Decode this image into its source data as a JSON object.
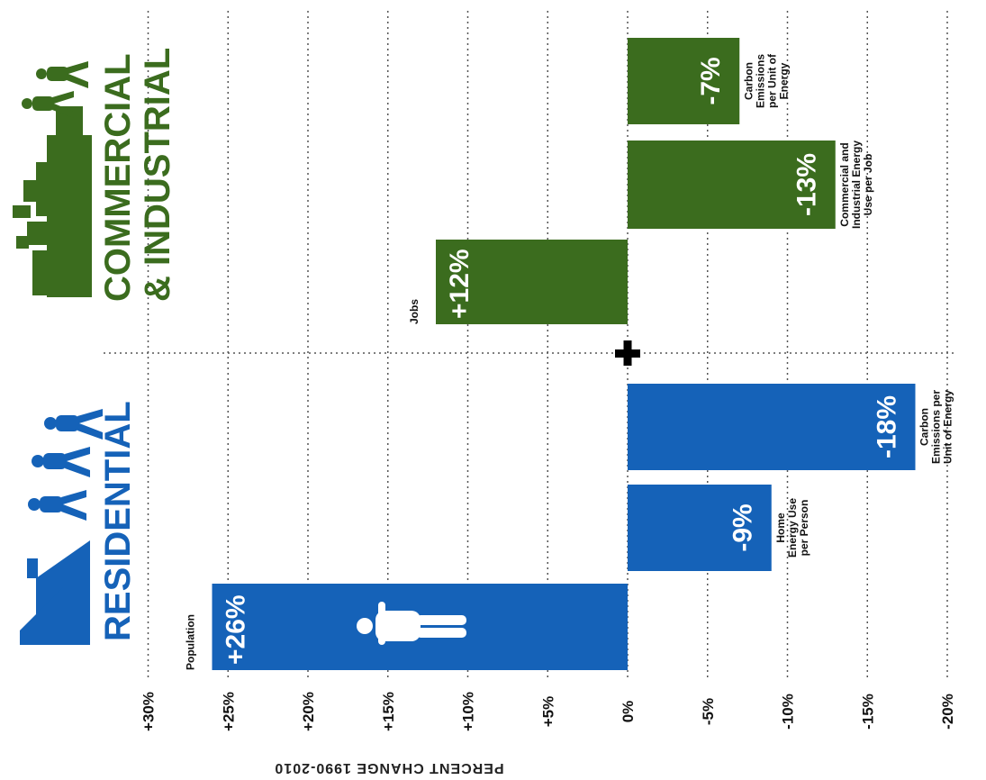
{
  "colors": {
    "residential": "#1562b8",
    "commercial": "#3b6c1e",
    "grid": "#555555",
    "text": "#111111"
  },
  "icons": {
    "residential": [
      "house-silhouette-icon",
      "walking-people-icon"
    ],
    "commercial": [
      "city-skyline-icon",
      "walking-people-icon"
    ],
    "population": "person-icon",
    "plus": "plus-icon"
  },
  "chart_data": {
    "type": "bar",
    "orientation": "horizontal",
    "axis_title": "PERCENT CHANGE 1990-2010",
    "ticks": [
      "+30%",
      "+25%",
      "+20%",
      "+15%",
      "+10%",
      "+5%",
      "0%",
      "-5%",
      "-10%",
      "-15%",
      "-20%"
    ],
    "tick_values": [
      30,
      25,
      20,
      15,
      10,
      5,
      0,
      -5,
      -10,
      -15,
      -20
    ],
    "xlim": [
      30,
      -20
    ],
    "grid": true,
    "groups": [
      {
        "key": "commercial",
        "title_line1": "COMMERCIAL",
        "title_line2": "& INDUSTRIAL",
        "bars": [
          {
            "label": "Carbon Emissions per Unit of Energy",
            "label_lines": [
              "Carbon",
              "Emissions",
              "per Unit of",
              "Energy"
            ],
            "value": -7,
            "value_label": "-7%"
          },
          {
            "label": "Commercial and Industrial Energy Use per Job",
            "label_lines": [
              "Commercial and",
              "Industrial Energy",
              "Use per Job"
            ],
            "value": -13,
            "value_label": "-13%"
          },
          {
            "label": "Jobs",
            "label_lines": [
              "Jobs"
            ],
            "value": 12,
            "value_label": "+12%"
          }
        ]
      },
      {
        "key": "residential",
        "title_line1": "RESIDENTIAL",
        "bars": [
          {
            "label": "Carbon Emissions per Unit of Energy",
            "label_lines": [
              "Carbon",
              "Emissions per",
              "Unit of Energy"
            ],
            "value": -18,
            "value_label": "-18%"
          },
          {
            "label": "Home Energy Use per Person",
            "label_lines": [
              "Home",
              "Energy Use",
              "per Person"
            ],
            "value": -9,
            "value_label": "-9%"
          },
          {
            "label": "Population",
            "label_lines": [
              "Population"
            ],
            "value": 26,
            "value_label": "+26%"
          }
        ]
      }
    ]
  }
}
